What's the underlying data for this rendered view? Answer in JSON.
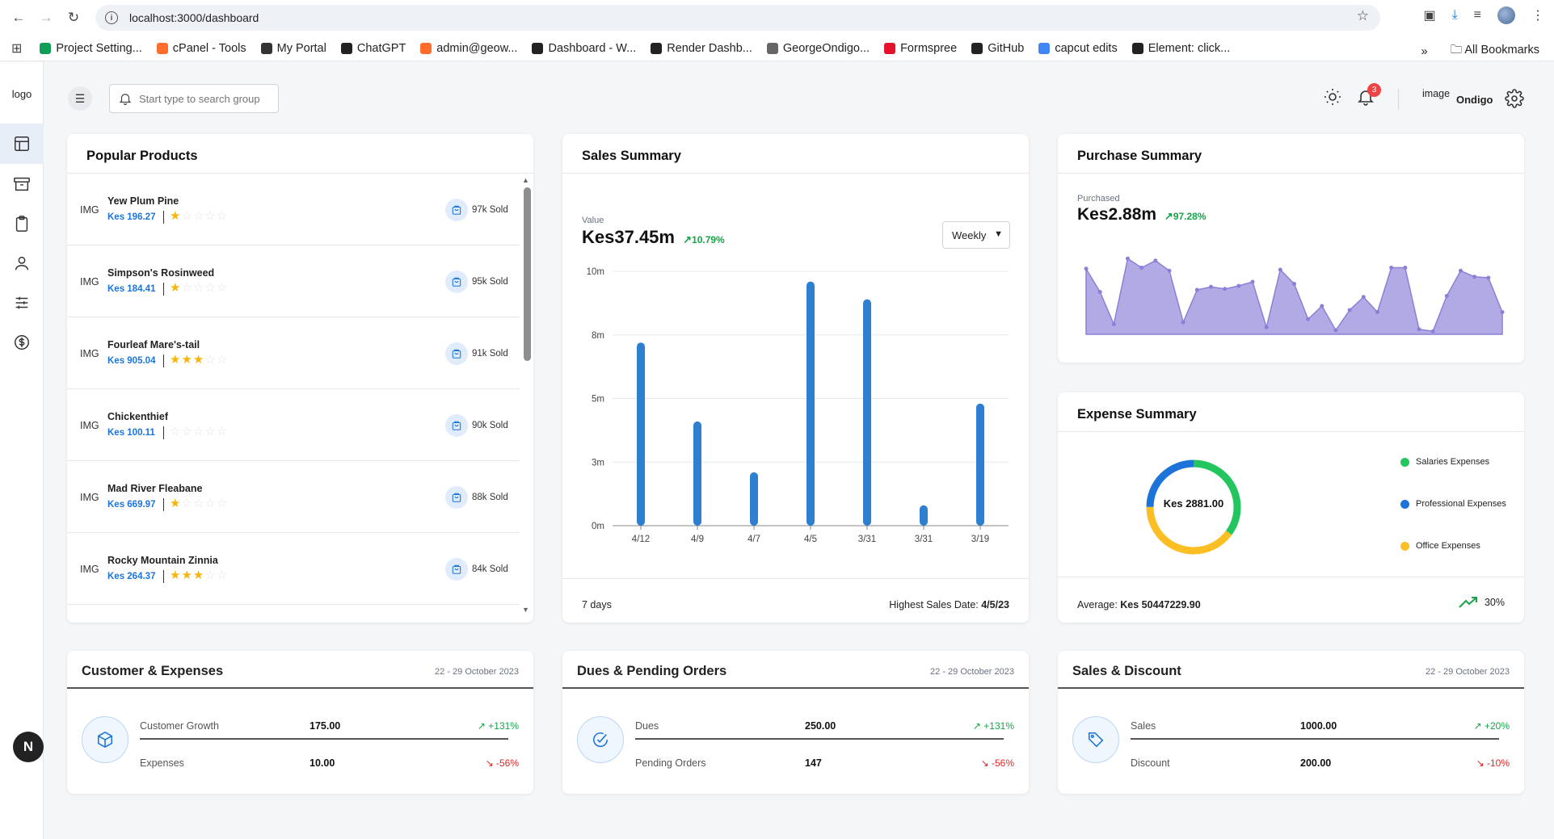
{
  "browser": {
    "url": "localhost:3000/dashboard",
    "bookmarks": [
      {
        "label": "Project Setting...",
        "color": "#0f9d58"
      },
      {
        "label": "cPanel - Tools",
        "color": "#ff6c2c"
      },
      {
        "label": "My Portal",
        "color": "#333333"
      },
      {
        "label": "ChatGPT",
        "color": "#222222"
      },
      {
        "label": "admin@geow...",
        "color": "#ff6c2c"
      },
      {
        "label": "Dashboard - W...",
        "color": "#222222"
      },
      {
        "label": "Render Dashb...",
        "color": "#222222"
      },
      {
        "label": "GeorgeOndigo...",
        "color": "#666666"
      },
      {
        "label": "Formspree",
        "color": "#e5122e"
      },
      {
        "label": "GitHub",
        "color": "#222222"
      },
      {
        "label": "capcut edits",
        "color": "#4285f4"
      },
      {
        "label": "Element: click...",
        "color": "#222222"
      }
    ],
    "all_bookmarks": "All Bookmarks"
  },
  "sidebar": {
    "logo": "logo",
    "items": [
      "dashboard-icon",
      "archive-icon",
      "clipboard-icon",
      "user-icon",
      "sliders-icon",
      "dollar-icon"
    ],
    "badge": "N"
  },
  "header": {
    "search_placeholder": "Start type to search groups",
    "notifications": "3",
    "avatar_alt": "image",
    "user_name": "Ondigo"
  },
  "popular_products": {
    "title": "Popular Products",
    "img_label": "IMG",
    "items": [
      {
        "name": "Yew Plum Pine",
        "price": "Kes 196.27",
        "rating": 1,
        "sold": "97k Sold"
      },
      {
        "name": "Simpson's Rosinweed",
        "price": "Kes 184.41",
        "rating": 1,
        "sold": "95k Sold"
      },
      {
        "name": "Fourleaf Mare's-tail",
        "price": "Kes 905.04",
        "rating": 3,
        "sold": "91k Sold"
      },
      {
        "name": "Chickenthief",
        "price": "Kes 100.11",
        "rating": 0,
        "sold": "90k Sold"
      },
      {
        "name": "Mad River Fleabane",
        "price": "Kes 669.97",
        "rating": 1,
        "sold": "88k Sold"
      },
      {
        "name": "Rocky Mountain Zinnia",
        "price": "Kes 264.37",
        "rating": 3,
        "sold": "84k Sold"
      }
    ]
  },
  "sales_summary": {
    "title": "Sales Summary",
    "value_label": "Value",
    "value": "Kes37.45m",
    "trend": "10.79%",
    "period_select": "Weekly",
    "footer_left": "7 days",
    "footer_right_label": "Highest Sales Date: ",
    "footer_right_value": "4/5/23"
  },
  "purchase_summary": {
    "title": "Purchase Summary",
    "label": "Purchased",
    "value": "Kes2.88m",
    "trend": "97.28%"
  },
  "expense_summary": {
    "title": "Expense Summary",
    "center": "Kes 2881.00",
    "legend": [
      {
        "label": "Salaries Expenses",
        "color": "#22c55e"
      },
      {
        "label": "Professional Expenses",
        "color": "#1d74d8"
      },
      {
        "label": "Office Expenses",
        "color": "#fbbf24"
      }
    ],
    "average_label": "Average: ",
    "average_value": "Kes 50447229.90",
    "pct": "30%"
  },
  "customer_expenses": {
    "title": "Customer & Expenses",
    "date": "22 - 29 October 2023",
    "rows": [
      {
        "label": "Customer Growth",
        "value": "175.00",
        "trend": "+131%",
        "up": true
      },
      {
        "label": "Expenses",
        "value": "10.00",
        "trend": "-56%",
        "up": false
      }
    ]
  },
  "dues_orders": {
    "title": "Dues & Pending Orders",
    "date": "22 - 29 October 2023",
    "rows": [
      {
        "label": "Dues",
        "value": "250.00",
        "trend": "+131%",
        "up": true
      },
      {
        "label": "Pending Orders",
        "value": "147",
        "trend": "-56%",
        "up": false
      }
    ]
  },
  "sales_discount": {
    "title": "Sales & Discount",
    "date": "22 - 29 October 2023",
    "rows": [
      {
        "label": "Sales",
        "value": "1000.00",
        "trend": "+20%",
        "up": true
      },
      {
        "label": "Discount",
        "value": "200.00",
        "trend": "-10%",
        "up": false
      }
    ]
  },
  "chart_data": [
    {
      "type": "bar",
      "categories": [
        "4/12",
        "4/9",
        "4/7",
        "4/5",
        "3/31",
        "3/31",
        "3/19"
      ],
      "values": [
        7.2,
        4.1,
        2.1,
        9.6,
        8.9,
        0.8,
        4.8
      ],
      "yticks": [
        "0m",
        "3m",
        "5m",
        "8m",
        "10m"
      ],
      "ylim": [
        0,
        10
      ],
      "color": "#2f7fd1",
      "grid": true
    },
    {
      "type": "area",
      "values": [
        6.5,
        4.2,
        1.0,
        7.5,
        6.6,
        7.3,
        6.3,
        1.2,
        4.4,
        4.7,
        4.5,
        4.8,
        5.2,
        0.7,
        6.4,
        5.0,
        1.5,
        2.8,
        0.4,
        2.4,
        3.7,
        2.2,
        6.6,
        6.6,
        0.5,
        0.3,
        3.8,
        6.3,
        5.7,
        5.6,
        2.2
      ],
      "color": "#a59be0",
      "stroke": "#8b80d6"
    },
    {
      "type": "pie",
      "labels": [
        "Salaries Expenses",
        "Office Expenses",
        "Professional Expenses"
      ],
      "values": [
        35,
        40,
        25
      ],
      "colors": [
        "#22c55e",
        "#fbbf24",
        "#1d74d8"
      ]
    }
  ]
}
